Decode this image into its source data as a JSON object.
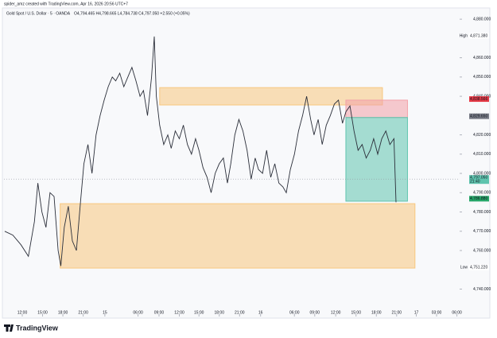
{
  "chart_data": {
    "type": "line",
    "credit": "spider_amz created with TradingView.com, Apr 16, 2026 20:56 UTC+7",
    "title": "Gold Spot / U.S. Dollar · 5 · OANDA",
    "ohlc_text": "O4,794.465 H4,798.665 L4,784.738 C4,797.050 +2.550 (+0.05%)",
    "brand": "TradingView",
    "color": "#2a2e39",
    "xlim": [
      -2.7,
      64.6
    ],
    "ylim": [
      4727,
      4885
    ],
    "xticks": [
      {
        "value": 0,
        "label": "12:00"
      },
      {
        "value": 3,
        "label": "15:00"
      },
      {
        "value": 6,
        "label": "18:00"
      },
      {
        "value": 9,
        "label": "21:00"
      },
      {
        "value": 12.2,
        "label": "15"
      },
      {
        "value": 17.1,
        "label": "06:00"
      },
      {
        "value": 20.2,
        "label": "09:00"
      },
      {
        "value": 23.2,
        "label": "12:00"
      },
      {
        "value": 26.1,
        "label": "15:00"
      },
      {
        "value": 29.1,
        "label": "18:00"
      },
      {
        "value": 32.1,
        "label": "21:00"
      },
      {
        "value": 35.2,
        "label": "16"
      },
      {
        "value": 40.2,
        "label": "06:00"
      },
      {
        "value": 43.2,
        "label": "09:00"
      },
      {
        "value": 46.3,
        "label": "12:00"
      },
      {
        "value": 49.3,
        "label": "15:00"
      },
      {
        "value": 52.3,
        "label": "18:00"
      },
      {
        "value": 55.3,
        "label": "21:00"
      },
      {
        "value": 58.2,
        "label": "17"
      },
      {
        "value": 61.2,
        "label": "03:00"
      },
      {
        "value": 64.2,
        "label": "06:00"
      }
    ],
    "yticks": [
      {
        "value": 4880,
        "label": "4,880.000"
      },
      {
        "value": 4860,
        "label": "4,860.000"
      },
      {
        "value": 4850,
        "label": "4,850.000"
      },
      {
        "value": 4840,
        "label": "4,840.000"
      },
      {
        "value": 4820,
        "label": "4,820.000"
      },
      {
        "value": 4810,
        "label": "4,810.000"
      },
      {
        "value": 4800,
        "label": "4,800.000"
      },
      {
        "value": 4790,
        "label": "4,790.000"
      },
      {
        "value": 4780,
        "label": "4,780.000"
      },
      {
        "value": 4770,
        "label": "4,770.000"
      },
      {
        "value": 4760,
        "label": "4,760.000"
      },
      {
        "value": 4740,
        "label": "4,740.000"
      }
    ],
    "x": [
      -2.6,
      -1.4,
      -0.2,
      0.9,
      1.8,
      2.3,
      2.9,
      3.5,
      4.1,
      4.7,
      5.3,
      5.7,
      6.2,
      6.8,
      7.4,
      8.0,
      8.6,
      9.1,
      9.7,
      10.3,
      10.9,
      11.5,
      12.1,
      12.7,
      13.3,
      13.8,
      14.4,
      15.0,
      15.6,
      16.2,
      16.8,
      17.4,
      17.9,
      18.5,
      19.1,
      19.5,
      19.8,
      20.3,
      20.9,
      21.5,
      22.0,
      22.6,
      23.2,
      23.8,
      24.4,
      25.0,
      25.6,
      26.1,
      26.7,
      27.3,
      27.9,
      28.5,
      29.1,
      29.7,
      30.3,
      30.8,
      31.4,
      32.0,
      32.6,
      33.2,
      33.8,
      34.4,
      34.9,
      35.5,
      36.1,
      36.7,
      37.3,
      37.9,
      38.5,
      39.0,
      39.6,
      40.2,
      40.8,
      41.4,
      42.0,
      42.6,
      43.1,
      43.7,
      44.3,
      44.9,
      45.5,
      46.1,
      46.7,
      47.3,
      47.8,
      48.4,
      49.0,
      49.6,
      50.2,
      50.8,
      51.4,
      51.9,
      52.5,
      53.1,
      53.7,
      54.3,
      54.9,
      55.2
    ],
    "close": [
      4770,
      4768,
      4763,
      4757,
      4775,
      4795,
      4780,
      4772,
      4790,
      4788,
      4760,
      4752,
      4772,
      4783,
      4765,
      4760,
      4785,
      4805,
      4815,
      4800,
      4820,
      4830,
      4838,
      4845,
      4850,
      4848,
      4852,
      4845,
      4850,
      4855,
      4848,
      4840,
      4843,
      4830,
      4850,
      4871,
      4840,
      4825,
      4815,
      4820,
      4813,
      4822,
      4818,
      4825,
      4815,
      4810,
      4818,
      4812,
      4803,
      4798,
      4790,
      4800,
      4805,
      4808,
      4795,
      4805,
      4820,
      4828,
      4822,
      4812,
      4797,
      4808,
      4802,
      4800,
      4812,
      4798,
      4805,
      4795,
      4793,
      4790,
      4802,
      4810,
      4822,
      4830,
      4840,
      4828,
      4820,
      4828,
      4815,
      4825,
      4830,
      4836,
      4838,
      4826,
      4832,
      4835,
      4822,
      4812,
      4815,
      4808,
      4812,
      4818,
      4810,
      4818,
      4822,
      4815,
      4818,
      4785
    ],
    "zones": [
      {
        "x": [
          20.3,
          53.2
        ],
        "y": [
          4835.5,
          4844.5
        ],
        "color": "#f7c77e"
      },
      {
        "x": [
          5.6,
          58.0
        ],
        "y": [
          4750.9,
          4784.3
        ],
        "color": "#f7c77e"
      },
      {
        "x": [
          47.8,
          56.9
        ],
        "y": [
          4829,
          4838
        ],
        "color": "#f2a0a8"
      },
      {
        "x": [
          47.8,
          56.9
        ],
        "y": [
          4785.6,
          4829
        ],
        "color": "#5fc4ae"
      }
    ],
    "current": {
      "value": 4797.05,
      "label": "4,797.050",
      "time": "21:40"
    },
    "price_labels": [
      {
        "name": "High",
        "value": 4871.38,
        "label": "4,871.380",
        "color": "#ffffff"
      },
      {
        "value": 4838.566,
        "label": "4,838.566",
        "color": "#e53945"
      },
      {
        "value": 4829.65,
        "label": "4,829.650",
        "color": "#787b86"
      },
      {
        "value": 4786.88,
        "label": "4,786.880",
        "color": "#26a669"
      },
      {
        "name": "Low",
        "value": 4751.22,
        "label": "4,751.220",
        "color": "#ffffff"
      }
    ]
  }
}
